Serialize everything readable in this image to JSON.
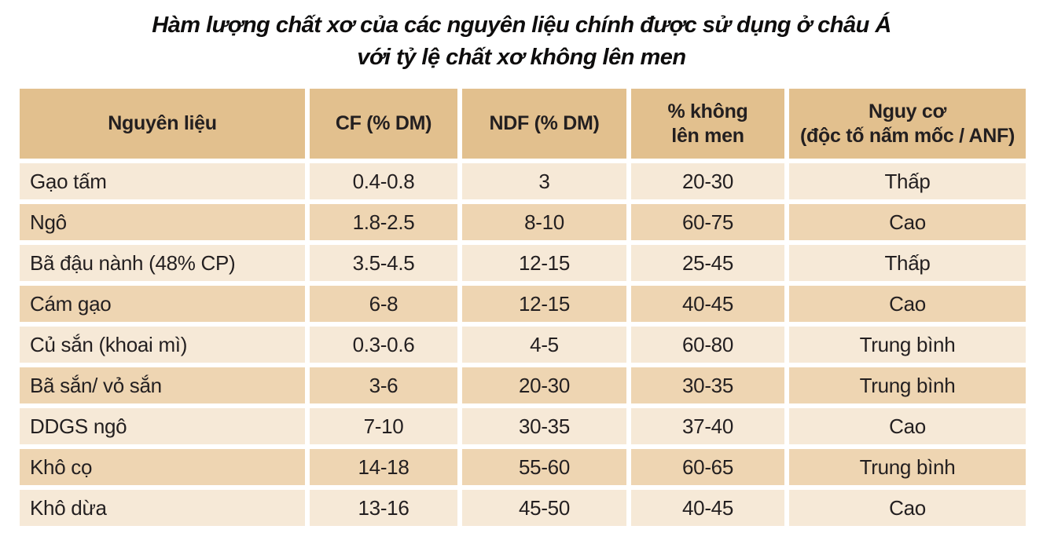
{
  "title": {
    "line1": "Hàm lượng chất xơ của các nguyên liệu chính được sử dụng ở châu Á",
    "line2": "với tỷ lệ chất xơ không lên men"
  },
  "colors": {
    "header_bg": "#e2c08e",
    "row_light_bg": "#f6e9d7",
    "row_dark_bg": "#eed5b2",
    "text": "#231f20"
  },
  "table": {
    "headers": [
      "Nguyên liệu",
      "CF (% DM)",
      "NDF (% DM)",
      "% không\nlên men",
      "Nguy cơ\n(độc tố nấm mốc / ANF)"
    ],
    "rows": [
      {
        "cells": [
          "Gạo tấm",
          "0.4-0.8",
          "3",
          "20-30",
          "Thấp"
        ]
      },
      {
        "cells": [
          "Ngô",
          "1.8-2.5",
          "8-10",
          "60-75",
          "Cao"
        ]
      },
      {
        "cells": [
          "Bã đậu nành (48% CP)",
          "3.5-4.5",
          "12-15",
          "25-45",
          "Thấp"
        ]
      },
      {
        "cells": [
          "Cám gạo",
          "6-8",
          "12-15",
          "40-45",
          "Cao"
        ]
      },
      {
        "cells": [
          "Củ sắn (khoai mì)",
          "0.3-0.6",
          "4-5",
          "60-80",
          "Trung bình"
        ]
      },
      {
        "cells": [
          "Bã sắn/ vỏ sắn",
          "3-6",
          "20-30",
          "30-35",
          "Trung bình"
        ]
      },
      {
        "cells": [
          "DDGS ngô",
          "7-10",
          "30-35",
          "37-40",
          "Cao"
        ]
      },
      {
        "cells": [
          "Khô cọ",
          "14-18",
          "55-60",
          "60-65",
          "Trung bình"
        ]
      },
      {
        "cells": [
          "Khô dừa",
          "13-16",
          "45-50",
          "40-45",
          "Cao"
        ]
      }
    ]
  }
}
